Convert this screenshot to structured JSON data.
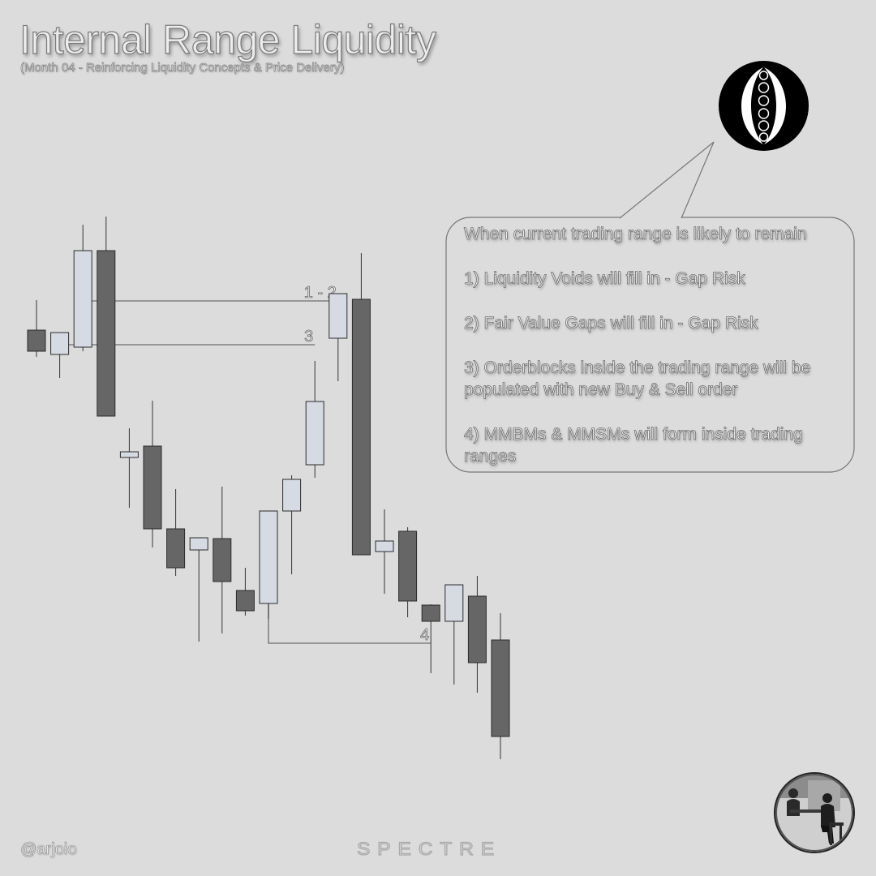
{
  "header": {
    "title": "Internal Range Liquidity",
    "subtitle": "(Month 04 - Reinforcing Liquidity Concepts & Price Delivery)"
  },
  "callout": {
    "heading": "When current trading range is likely to remain",
    "items": [
      "1) Liquidity Voids will fill in - Gap Risk",
      "2) Fair Value Gaps will fill in - Gap Risk",
      "3) Orderblocks inside the trading range will be populated with new Buy & Sell order",
      "4) MMBMs & MMSMs will form inside trading ranges"
    ]
  },
  "footer": {
    "handle": "@arjoio",
    "brand": "SPECTRE"
  },
  "icons": {
    "logo": "ornamental-emblem-icon",
    "avatar": "profile-photo-avatar"
  },
  "colors": {
    "bullish": "#d5dae3",
    "bearish": "#666666",
    "background": "#dcdcdc"
  },
  "chart_data": {
    "type": "candlestick",
    "series": [
      {
        "o": 583,
        "h": 620,
        "l": 550,
        "c": 557
      },
      {
        "o": 553,
        "h": 575,
        "l": 524,
        "c": 580
      },
      {
        "o": 562,
        "h": 713,
        "l": 557,
        "c": 681
      },
      {
        "o": 681,
        "h": 723,
        "l": 503,
        "c": 477
      },
      {
        "o": 426,
        "h": 462,
        "l": 364,
        "c": 433
      },
      {
        "o": 440,
        "h": 496,
        "l": 315,
        "c": 338
      },
      {
        "o": 338,
        "h": 387,
        "l": 280,
        "c": 290
      },
      {
        "o": 312,
        "h": 325,
        "l": 199,
        "c": 327
      },
      {
        "o": 326,
        "h": 390,
        "l": 209,
        "c": 273
      },
      {
        "o": 262,
        "h": 290,
        "l": 231,
        "c": 237
      },
      {
        "o": 246,
        "h": 342,
        "l": 227,
        "c": 360
      },
      {
        "o": 360,
        "h": 404,
        "l": 282,
        "c": 399
      },
      {
        "o": 417,
        "h": 545,
        "l": 401,
        "c": 495
      },
      {
        "o": 573,
        "h": 603,
        "l": 520,
        "c": 628
      },
      {
        "o": 621,
        "h": 678,
        "l": 314,
        "c": 306
      },
      {
        "o": 310,
        "h": 362,
        "l": 258,
        "c": 323
      },
      {
        "o": 335,
        "h": 340,
        "l": 229,
        "c": 249
      },
      {
        "o": 244,
        "h": 245,
        "l": 160,
        "c": 224
      },
      {
        "o": 224,
        "h": 269,
        "l": 146,
        "c": 269
      },
      {
        "o": 255,
        "h": 280,
        "l": 136,
        "c": 173
      },
      {
        "o": 201,
        "h": 234,
        "l": 54,
        "c": 82
      }
    ],
    "levels": [
      {
        "label": "1 - 2",
        "value": 619,
        "from": 2,
        "to": 13
      },
      {
        "label": "3",
        "value": 565,
        "from": 1,
        "to": 12
      },
      {
        "label": "4",
        "value": 197,
        "from": 10,
        "to": 17
      }
    ],
    "grid": false
  }
}
